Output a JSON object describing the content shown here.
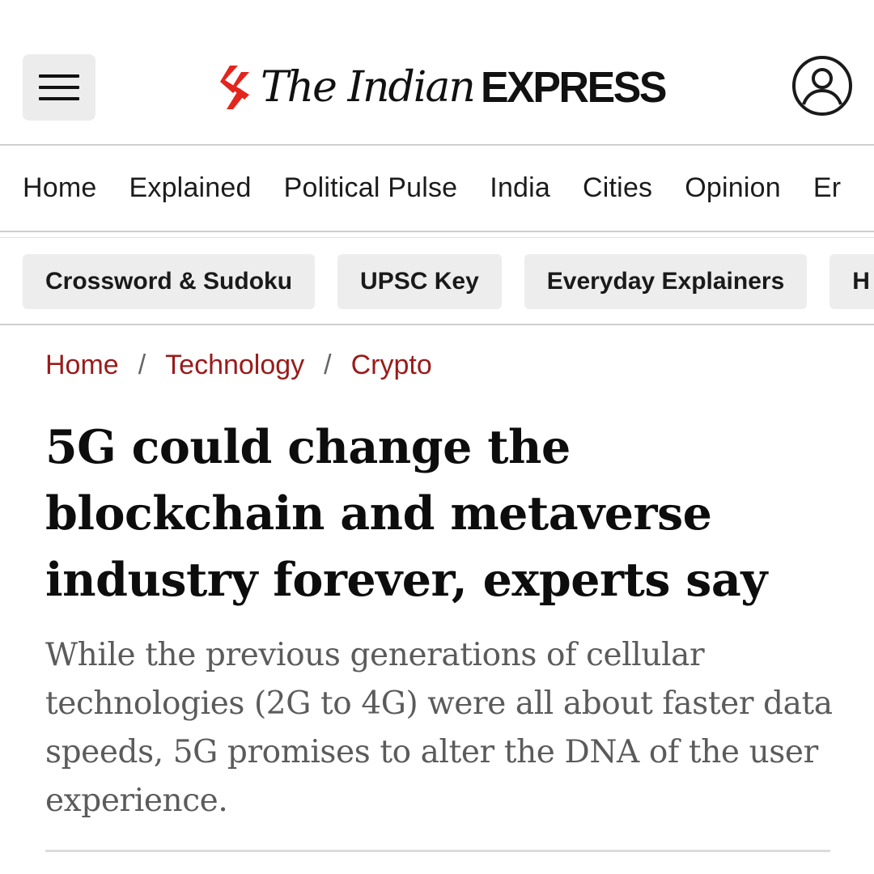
{
  "header": {
    "menu_icon": "hamburger-menu-icon",
    "logo": {
      "script_text": "The Indian",
      "bold_text": "EXPRESS",
      "mark_color": "#e4251d"
    },
    "account_icon": "user-account-icon"
  },
  "nav": {
    "items": [
      {
        "label": "Home"
      },
      {
        "label": "Explained"
      },
      {
        "label": "Political Pulse"
      },
      {
        "label": "India"
      },
      {
        "label": "Cities"
      },
      {
        "label": "Opinion"
      },
      {
        "label": "Er"
      }
    ]
  },
  "chips": {
    "items": [
      {
        "label": "Crossword & Sudoku"
      },
      {
        "label": "UPSC Key"
      },
      {
        "label": "Everyday Explainers"
      },
      {
        "label": "H"
      }
    ]
  },
  "breadcrumb": {
    "items": [
      {
        "label": "Home"
      },
      {
        "label": "Technology"
      },
      {
        "label": "Crypto"
      }
    ],
    "separator": "/"
  },
  "article": {
    "headline": "5G could change the blockchain and metaverse industry forever, experts say",
    "standfirst": "While the previous generations of cellular technologies (2G to 4G) were all about faster data speeds, 5G promises to alter the DNA of the user experience."
  },
  "colors": {
    "breadcrumb_link": "#9a1b1b",
    "chip_bg": "#ededed",
    "standfirst": "#5b5b5b"
  }
}
